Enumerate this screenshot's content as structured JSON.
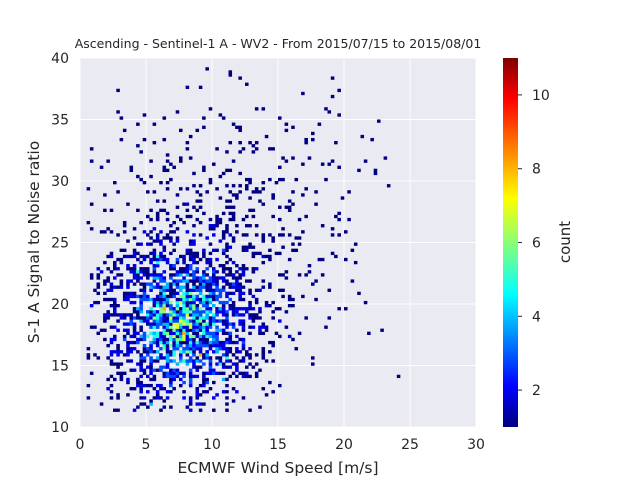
{
  "chart_data": {
    "type": "heatmap",
    "title": "Ascending - Sentinel-1 A - WV2 - From 2015/07/15 to 2015/08/01",
    "xlabel": "ECMWF Wind Speed [m/s]",
    "ylabel": "S-1 A Signal to Noise ratio",
    "xlim": [
      0,
      30
    ],
    "ylim": [
      10,
      40
    ],
    "xticks": [
      "0",
      "5",
      "10",
      "15",
      "20",
      "25",
      "30"
    ],
    "yticks": [
      "10",
      "15",
      "20",
      "25",
      "30",
      "35",
      "40"
    ],
    "bin_size": [
      0.25,
      0.25
    ],
    "grid": true,
    "colormap": "jet",
    "colorbar": {
      "label": "count",
      "range": [
        1,
        11
      ],
      "ticks": [
        "2",
        "4",
        "6",
        "8",
        "10"
      ]
    },
    "density_core": {
      "x_center": 7.5,
      "y_center": 18.5,
      "peak_count": 11
    }
  },
  "colors": {
    "plot_background": "#eaeaf2",
    "grid": "#ffffff",
    "cmap_dark_blue": "#00007f",
    "cmap_blue": "#0000ff",
    "cmap_cyan": "#00ffff",
    "cmap_yellow": "#ffff00",
    "cmap_red": "#ff0000",
    "cmap_dark_red": "#7f0000"
  }
}
